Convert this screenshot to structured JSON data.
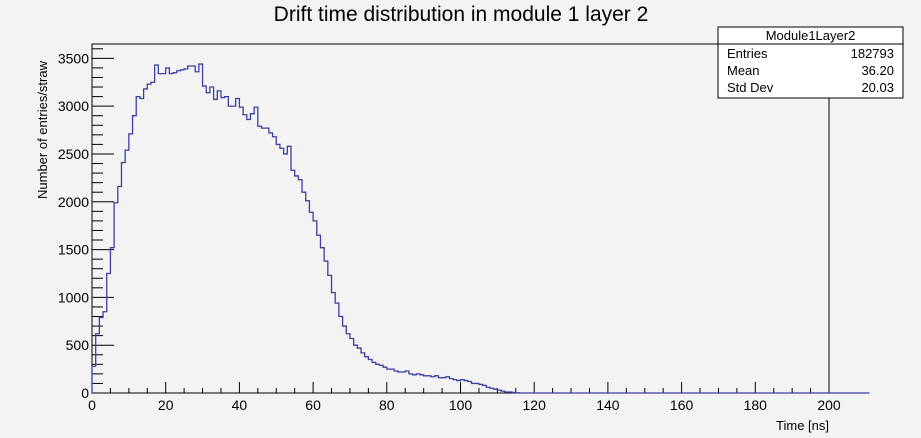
{
  "chart_data": {
    "type": "histogram",
    "title": "Drift time distribution in module 1 layer 2",
    "xlabel": "Time [ns]",
    "ylabel": "Number of entries/straw",
    "xlim": [
      0,
      200
    ],
    "ylim": [
      0,
      3650
    ],
    "x_ticks": [
      0,
      20,
      40,
      60,
      80,
      100,
      120,
      140,
      160,
      180,
      200
    ],
    "y_ticks": [
      0,
      500,
      1000,
      1500,
      2000,
      2500,
      3000,
      3500
    ],
    "bin_width": 1,
    "bin_start": 0,
    "values": [
      280,
      620,
      790,
      850,
      1250,
      1520,
      1990,
      2160,
      2410,
      2540,
      2710,
      2900,
      3100,
      3080,
      3180,
      3230,
      3250,
      3430,
      3340,
      3340,
      3400,
      3340,
      3350,
      3370,
      3380,
      3390,
      3420,
      3420,
      3360,
      3440,
      3210,
      3140,
      3200,
      3070,
      3160,
      3090,
      3100,
      3000,
      3000,
      3080,
      2990,
      2910,
      2860,
      2920,
      2990,
      2790,
      2770,
      2770,
      2720,
      2680,
      2600,
      2560,
      2500,
      2580,
      2330,
      2270,
      2230,
      2100,
      2010,
      1890,
      1800,
      1650,
      1520,
      1380,
      1230,
      1050,
      940,
      800,
      700,
      620,
      570,
      500,
      470,
      420,
      380,
      350,
      320,
      300,
      290,
      270,
      250,
      250,
      230,
      220,
      220,
      230,
      200,
      190,
      200,
      190,
      180,
      180,
      170,
      180,
      160,
      160,
      170,
      150,
      140,
      130,
      140,
      130,
      120,
      100,
      100,
      90,
      80,
      60,
      50,
      40,
      30,
      20,
      10,
      10,
      5,
      2,
      0,
      0,
      0,
      0,
      0,
      0,
      0,
      0,
      0,
      0,
      0,
      0,
      0,
      0,
      0,
      0,
      0,
      0,
      0,
      0,
      0,
      0,
      0,
      0,
      0,
      0,
      0,
      0,
      0,
      0,
      0,
      0,
      0,
      0,
      0,
      0,
      0,
      0,
      0,
      0,
      0,
      0,
      0,
      0,
      0,
      0,
      0,
      0,
      0,
      0,
      0,
      0,
      0,
      0,
      0,
      0,
      0,
      0,
      0,
      0,
      0,
      0,
      0,
      0,
      0,
      0,
      0,
      0,
      0,
      0,
      0,
      0,
      0,
      0,
      0,
      0,
      0,
      0,
      0,
      0,
      0,
      0,
      0,
      0,
      0,
      0,
      0,
      0,
      0,
      0,
      0,
      0,
      0,
      0,
      0
    ],
    "line_color": "#3a3fa0",
    "grid": false,
    "legend_position": "top-right",
    "stats_box": {
      "name": "Module1Layer2",
      "rows": [
        {
          "label": "Entries",
          "value": "182793"
        },
        {
          "label": "Mean",
          "value": "36.20"
        },
        {
          "label": "Std Dev",
          "value": "20.03"
        }
      ]
    }
  }
}
